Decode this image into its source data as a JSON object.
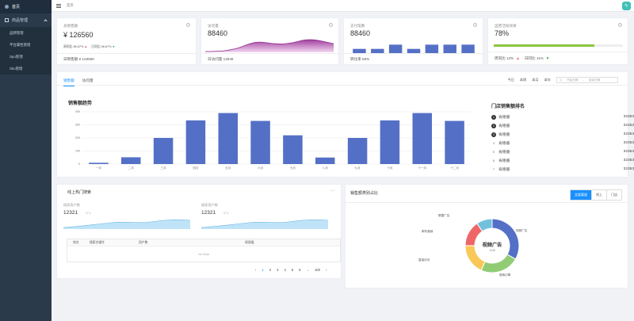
{
  "sidebar": {
    "home": "首页",
    "group": "商品管理",
    "items": [
      {
        "label": "品牌管理"
      },
      {
        "label": "平台属性管理"
      },
      {
        "label": "Spu管理"
      },
      {
        "label": "Sku管理"
      }
    ]
  },
  "header": {
    "breadcrumb": "首页",
    "avatar_icon": "user-icon"
  },
  "stats": [
    {
      "title": "总销售额",
      "value": "¥ 126560",
      "week": "周同比 56.67%",
      "day": "日同比 56.67%",
      "foot": "日销售额 ¥ 126560"
    },
    {
      "title": "访问量",
      "value": "88460",
      "foot": "日访问量 12546"
    },
    {
      "title": "支付笔数",
      "value": "88460",
      "foot": "转化率 65%"
    },
    {
      "title": "运营活动效果",
      "value": "78%",
      "progress": 0.78,
      "week": "周同比 12%",
      "day": "日同比 11%"
    }
  ],
  "sales": {
    "tabs": [
      "销售额",
      "访问量"
    ],
    "ranges": [
      "今日",
      "本周",
      "本月",
      "本年"
    ],
    "date_start": "开始日期",
    "date_sep": "-",
    "date_end": "结束日期",
    "chart_title": "销售额趋势",
    "rank_title": "门店销售额排名",
    "rank": [
      {
        "no": "1",
        "name": "肯德基",
        "value": "32353"
      },
      {
        "no": "2",
        "name": "肯德基",
        "value": "32353"
      },
      {
        "no": "3",
        "name": "肯德基",
        "value": "32353"
      },
      {
        "no": "4",
        "name": "肯德基",
        "value": "32353"
      },
      {
        "no": "5",
        "name": "肯德基",
        "value": "32353"
      },
      {
        "no": "6",
        "name": "肯德基",
        "value": "32353"
      },
      {
        "no": "7",
        "name": "肯德基",
        "value": "32353"
      }
    ]
  },
  "hot": {
    "title": "线上热门搜索",
    "more": "···",
    "users_label": "搜索用户数",
    "users_value": "12321",
    "users_delta": "17.1",
    "avg_label": "搜索用户数",
    "avg_value": "12321",
    "avg_delta": "17.1",
    "columns": [
      "排名",
      "搜索关键字",
      "用户数",
      "周涨幅"
    ],
    "empty": "No Data",
    "pages": [
      "1",
      "2",
      "3",
      "4",
      "5",
      "6",
      "...",
      "100"
    ],
    "prev": "‹",
    "next": "›"
  },
  "share": {
    "title": "销售额类别占比",
    "segments": [
      "全部渠道",
      "线上",
      "门店"
    ],
    "center_title": "视频广告",
    "center_value": "1048",
    "labels": [
      "视频广告",
      "搜索引擎",
      "直接访问",
      "邮件营销",
      "联盟广告"
    ]
  },
  "chart_data": [
    {
      "type": "bar",
      "title": "销售额趋势",
      "categories": [
        "一月",
        "二月",
        "三月",
        "四月",
        "五月",
        "六月",
        "七月",
        "八月",
        "九月",
        "十月",
        "十一月",
        "十二月"
      ],
      "values": [
        10,
        52,
        200,
        334,
        390,
        330,
        220,
        50,
        200,
        334,
        390,
        330
      ],
      "ylim": [
        0,
        400
      ],
      "yticks": [
        0,
        100,
        200,
        300,
        400
      ],
      "color": "#5470c6"
    },
    {
      "type": "pie",
      "title": "销售额类别占比",
      "categories": [
        "视频广告",
        "搜索引擎",
        "直接访问",
        "邮件营销",
        "联盟广告"
      ],
      "values": [
        1048,
        735,
        580,
        484,
        300
      ],
      "colors": [
        "#5470c6",
        "#91cc75",
        "#fac858",
        "#ee6666",
        "#73c0de"
      ]
    },
    {
      "type": "bar",
      "title": "",
      "values": [
        1,
        1,
        2,
        1,
        2,
        2,
        2
      ],
      "color": "#5470c6"
    }
  ]
}
